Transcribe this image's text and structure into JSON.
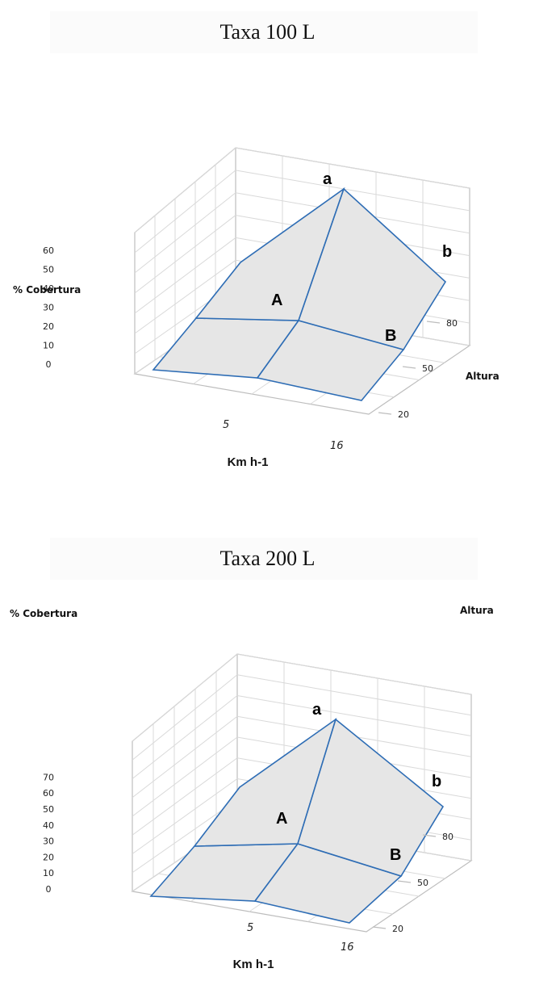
{
  "chart_data": [
    {
      "type": "surface3d",
      "title": "Taxa 100 L",
      "zlabel": "% Cobertura",
      "xlabel": "Km h-1",
      "ylabel": "Altura",
      "x_ticks": [
        "5",
        "16"
      ],
      "y_ticks": [
        "20",
        "50",
        "80"
      ],
      "z_ticks": [
        "0",
        "10",
        "20",
        "30",
        "40",
        "50",
        "60"
      ],
      "zlim": [
        0,
        60
      ],
      "x": [
        5,
        10.5,
        16
      ],
      "y": [
        20,
        50,
        80
      ],
      "z": [
        [
          0,
          2,
          28
        ],
        [
          1,
          6,
          46
        ],
        [
          2,
          12,
          60
        ]
      ],
      "annotations": [
        "a",
        "b",
        "A",
        "B"
      ]
    },
    {
      "type": "surface3d",
      "title": "Taxa 200 L",
      "zlabel": "% Cobertura",
      "xlabel": "Km h-1",
      "ylabel": "Altura",
      "x_ticks": [
        "5",
        "16"
      ],
      "y_ticks": [
        "20",
        "50",
        "80"
      ],
      "z_ticks": [
        "0",
        "10",
        "20",
        "30",
        "40",
        "50",
        "60",
        "70"
      ],
      "zlim": [
        0,
        70
      ],
      "x": [
        5,
        10.5,
        16
      ],
      "y": [
        20,
        50,
        80
      ],
      "z": [
        [
          1,
          3,
          34
        ],
        [
          2,
          8,
          54
        ],
        [
          3,
          16,
          70
        ]
      ],
      "annotations": [
        "a",
        "b",
        "A",
        "B"
      ]
    }
  ]
}
